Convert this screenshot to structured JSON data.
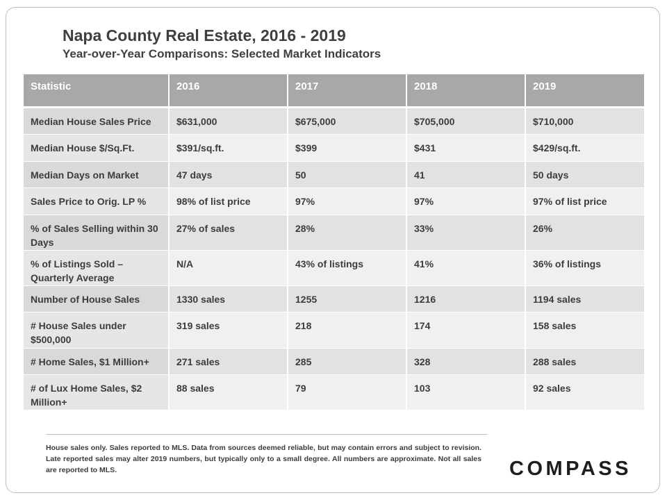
{
  "header": {
    "title": "Napa County Real Estate, 2016 - 2019",
    "subtitle": "Year-over-Year  Comparisons:  Selected Market Indicators"
  },
  "table": {
    "columns": [
      "Statistic",
      "2016",
      "2017",
      "2018",
      "2019"
    ],
    "rows": [
      [
        "Median House Sales Price",
        "$631,000",
        "$675,000",
        "$705,000",
        "$710,000"
      ],
      [
        "Median House $/Sq.Ft.",
        "$391/sq.ft.",
        "$399",
        "$431",
        "$429/sq.ft."
      ],
      [
        "Median Days on Market",
        "47 days",
        "50",
        "41",
        "50 days"
      ],
      [
        "Sales Price to Orig. LP %",
        "98% of list price",
        "97%",
        "97%",
        "97% of list price"
      ],
      [
        "% of Sales Selling within 30 Days",
        "27% of sales",
        "28%",
        "33%",
        "26%"
      ],
      [
        "% of Listings Sold – Quarterly Average",
        "N/A",
        "43% of listings",
        "41%",
        "36% of listings"
      ],
      [
        "Number of House Sales",
        "1330 sales",
        "1255",
        "1216",
        "1194 sales"
      ],
      [
        "# House Sales under $500,000",
        "319 sales",
        "218",
        "174",
        "158 sales"
      ],
      [
        "# Home Sales, $1 Million+",
        "271 sales",
        "285",
        "328",
        "288 sales"
      ],
      [
        "# of Lux Home Sales, $2 Million+",
        "88 sales",
        "79",
        "103",
        "92 sales"
      ]
    ]
  },
  "footnote": "House sales only. Sales reported to MLS. Data from sources deemed reliable, but may contain errors and subject to revision. Late reported sales may alter 2019 numbers, but typically only to a small degree. All numbers are approximate. Not all sales are reported to MLS.",
  "logo": "COMPASS",
  "colors": {
    "header_bg": "#a8a8a8",
    "row_odd": "#e2e2e2",
    "row_even": "#f0f0f0",
    "text": "#3c3c3c"
  }
}
